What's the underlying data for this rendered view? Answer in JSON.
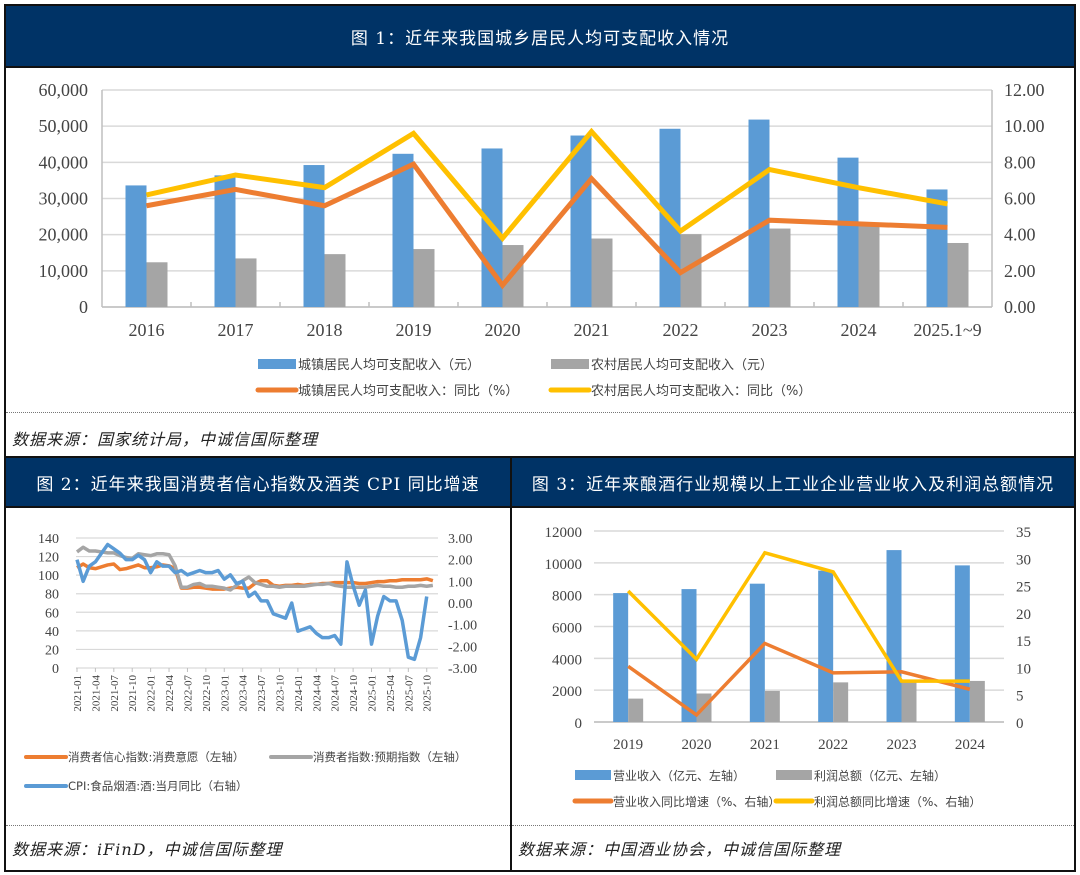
{
  "fig1": {
    "title": "图 1：近年来我国城乡居民人均可支配收入情况",
    "source": "数据来源：国家统计局，中诚信国际整理"
  },
  "fig2": {
    "title": "图 2：近年来我国消费者信心指数及酒类 CPI 同比增速",
    "source": "数据来源：iFinD，中诚信国际整理"
  },
  "fig3": {
    "title": "图 3：近年来酿酒行业规模以上工业企业营业收入及利润总额情况",
    "source": "数据来源：中国酒业协会，中诚信国际整理"
  },
  "colors": {
    "header": "#003366",
    "blue": "#5b9bd5",
    "gray": "#a5a5a5",
    "orange": "#ed7d31",
    "yellow": "#ffc000"
  },
  "chart_data": [
    {
      "type": "bar",
      "title": "图 1：近年来我国城乡居民人均可支配收入情况",
      "categories": [
        "2016",
        "2017",
        "2018",
        "2019",
        "2020",
        "2021",
        "2022",
        "2023",
        "2024",
        "2025.1~9"
      ],
      "y_left": {
        "ticks": [
          "0",
          "10,000",
          "20,000",
          "30,000",
          "40,000",
          "50,000",
          "60,000"
        ],
        "range": [
          0,
          60000
        ]
      },
      "y_right": {
        "ticks": [
          "0.00",
          "2.00",
          "4.00",
          "6.00",
          "8.00",
          "10.00",
          "12.00"
        ],
        "range": [
          0,
          12
        ]
      },
      "grid": true,
      "legend_position": "bottom",
      "series": [
        {
          "name": "城镇居民人均可支配收入（元）",
          "type": "bar",
          "axis": "left",
          "color": "#5b9bd5",
          "values": [
            33616,
            36396,
            39251,
            42359,
            43834,
            47412,
            49283,
            51821,
            41300,
            32500
          ]
        },
        {
          "name": "农村居民人均可支配收入（元）",
          "type": "bar",
          "axis": "left",
          "color": "#a5a5a5",
          "values": [
            12363,
            13432,
            14617,
            16021,
            17131,
            18931,
            20133,
            21691,
            22800,
            17700
          ]
        },
        {
          "name": "城镇居民人均可支配收入：同比（%）",
          "type": "line",
          "axis": "right",
          "color": "#ed7d31",
          "values": [
            5.6,
            6.5,
            5.6,
            7.9,
            1.2,
            7.1,
            1.9,
            4.8,
            4.6,
            4.4
          ]
        },
        {
          "name": "农村居民人均可支配收入：同比（%）",
          "type": "line",
          "axis": "right",
          "color": "#ffc000",
          "values": [
            6.2,
            7.3,
            6.6,
            9.6,
            3.8,
            9.7,
            4.2,
            7.6,
            6.6,
            5.7
          ]
        }
      ]
    },
    {
      "type": "line",
      "title": "图 2：近年来我国消费者信心指数及酒类 CPI 同比增速",
      "x_tick_labels": [
        "2021-01",
        "2021-04",
        "2021-07",
        "2021-10",
        "2022-01",
        "2022-04",
        "2022-07",
        "2022-10",
        "2023-01",
        "2023-04",
        "2023-07",
        "2023-10",
        "2024-01",
        "2024-04",
        "2024-07",
        "2024-10",
        "2025-01",
        "2025-04",
        "2025-07",
        "2025-10"
      ],
      "x_start": "2021-01",
      "x_step": "month",
      "y_left": {
        "ticks": [
          "0",
          "20",
          "40",
          "60",
          "80",
          "100",
          "120",
          "140"
        ],
        "range": [
          0,
          140
        ]
      },
      "y_right": {
        "ticks": [
          "-3.00",
          "-2.00",
          "-1.00",
          "0.00",
          "1.00",
          "2.00",
          "3.00"
        ],
        "range": [
          -3,
          3
        ]
      },
      "grid": true,
      "legend_position": "bottom",
      "series": [
        {
          "name": "消费者信心指数:消费意愿（左轴）",
          "axis": "left",
          "color": "#ed7d31",
          "values": [
            108,
            112,
            108,
            107,
            109,
            111,
            112,
            106,
            107,
            109,
            111,
            108,
            108,
            109,
            111,
            110,
            107,
            86,
            86,
            87,
            87,
            86,
            85,
            85,
            85,
            86,
            87,
            86,
            86,
            91,
            94,
            94,
            89,
            88,
            89,
            89,
            90,
            89,
            90,
            90,
            91,
            91,
            92,
            92,
            92,
            92,
            91,
            91,
            92,
            93,
            93,
            94,
            94,
            95,
            95,
            95,
            95,
            96,
            94,
            98,
            95,
            95
          ]
        },
        {
          "name": "消费者指数:预期指数（左轴）",
          "axis": "left",
          "color": "#a5a5a5",
          "values": [
            125,
            130,
            126,
            126,
            125,
            124,
            124,
            121,
            119,
            118,
            123,
            122,
            121,
            123,
            123,
            122,
            110,
            87,
            87,
            90,
            91,
            88,
            88,
            87,
            86,
            84,
            89,
            94,
            98,
            92,
            90,
            88,
            88,
            87,
            88,
            88,
            88,
            88,
            89,
            90,
            90,
            91,
            89,
            88,
            87,
            87,
            87,
            87,
            88,
            89,
            88,
            88,
            87,
            87,
            88,
            88,
            89,
            88,
            89,
            89,
            89,
            90
          ]
        },
        {
          "name": "CPI:食品烟酒:酒:当月同比（右轴）",
          "axis": "right",
          "color": "#5b9bd5",
          "values": [
            2.0,
            1.0,
            1.7,
            1.9,
            2.3,
            2.7,
            2.5,
            2.3,
            2.0,
            2.0,
            2.2,
            2.0,
            1.4,
            1.9,
            1.7,
            1.7,
            1.4,
            1.5,
            1.3,
            1.4,
            1.5,
            1.4,
            1.4,
            1.5,
            1.1,
            1.3,
            0.9,
            1.0,
            0.3,
            0.5,
            0.1,
            0.1,
            -0.5,
            -0.6,
            -0.7,
            0.0,
            -1.3,
            -1.2,
            -1.1,
            -1.4,
            -1.6,
            -1.6,
            -1.5,
            -1.9,
            1.9,
            0.8,
            -0.1,
            0.6,
            -1.9,
            -0.6,
            0.3,
            0.1,
            0.1,
            -0.8,
            -2.5,
            -2.6,
            -1.6,
            0.3
          ]
        }
      ]
    },
    {
      "type": "bar",
      "title": "图 3：近年来酿酒行业规模以上工业企业营业收入及利润总额情况",
      "categories": [
        "2019",
        "2020",
        "2021",
        "2022",
        "2023",
        "2024"
      ],
      "y_left": {
        "ticks": [
          "0",
          "2000",
          "4000",
          "6000",
          "8000",
          "10000",
          "12000"
        ],
        "range": [
          0,
          12000
        ]
      },
      "y_right": {
        "ticks": [
          "0",
          "5",
          "10",
          "15",
          "20",
          "25",
          "30",
          "35"
        ],
        "range": [
          0,
          35
        ]
      },
      "grid": true,
      "legend_position": "bottom",
      "series": [
        {
          "name": "营业收入（亿元、左轴）",
          "type": "bar",
          "axis": "left",
          "color": "#5b9bd5",
          "values": [
            8100,
            8350,
            8690,
            9510,
            10800,
            9840
          ]
        },
        {
          "name": "利润总额（亿元、左轴）",
          "type": "bar",
          "axis": "left",
          "color": "#a5a5a5",
          "values": [
            1470,
            1790,
            1950,
            2490,
            2540,
            2580
          ]
        },
        {
          "name": "营业收入同比增速（%、右轴）",
          "type": "line",
          "axis": "right",
          "color": "#ed7d31",
          "values": [
            10.2,
            1.3,
            14.4,
            9.0,
            9.2,
            6.0
          ]
        },
        {
          "name": "利润总额同比增速（%、右轴）",
          "type": "line",
          "axis": "right",
          "color": "#ffc000",
          "values": [
            24.0,
            11.5,
            31.0,
            27.5,
            7.5,
            7.5
          ]
        }
      ]
    }
  ]
}
